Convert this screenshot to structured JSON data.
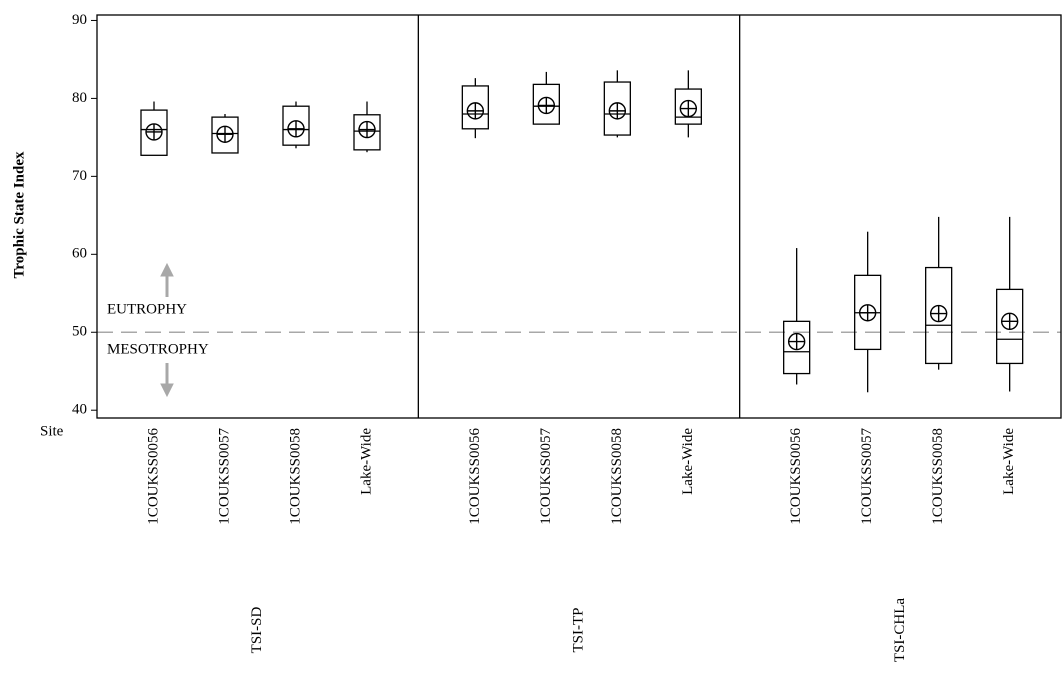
{
  "chart_data": {
    "type": "box",
    "y_label": "Trophic State Index",
    "x_label": "Site",
    "ylim": [
      39,
      90.7
    ],
    "yticks": [
      40,
      50,
      60,
      70,
      80,
      90
    ],
    "reference_line": {
      "value": 50,
      "upper_label": "EUTROPHY",
      "lower_label": "MESOTROPHY",
      "color": "#a8a8a8"
    },
    "panels": [
      {
        "name": "TSI-SD",
        "categories": [
          "1COUKSS0056",
          "1COUKSS0057",
          "1COUKSS0058",
          "Lake-Wide"
        ],
        "whisker_low": [
          72.7,
          73.0,
          73.6,
          73.1
        ],
        "q1": [
          72.7,
          73.0,
          74.0,
          73.4
        ],
        "median": [
          76.0,
          75.5,
          76.0,
          75.8
        ],
        "q3": [
          78.5,
          77.6,
          79.0,
          77.9
        ],
        "whisker_high": [
          79.6,
          78.0,
          79.6,
          79.6
        ],
        "mean": [
          75.7,
          75.4,
          76.1,
          76.0
        ]
      },
      {
        "name": "TSI-TP",
        "categories": [
          "1COUKSS0056",
          "1COUKSS0057",
          "1COUKSS0058",
          "Lake-Wide"
        ],
        "whisker_low": [
          74.9,
          76.7,
          75.0,
          75.0
        ],
        "q1": [
          76.1,
          76.7,
          75.3,
          76.7
        ],
        "median": [
          78.0,
          79.0,
          78.0,
          77.6
        ],
        "q3": [
          81.6,
          81.8,
          82.1,
          81.2
        ],
        "whisker_high": [
          82.6,
          83.4,
          83.6,
          83.6
        ],
        "mean": [
          78.4,
          79.1,
          78.4,
          78.7
        ]
      },
      {
        "name": "TSI-CHLa",
        "categories": [
          "1COUKSS0056",
          "1COUKSS0057",
          "1COUKSS0058",
          "Lake-Wide"
        ],
        "whisker_low": [
          43.3,
          42.3,
          45.2,
          42.4
        ],
        "q1": [
          44.7,
          47.8,
          46.0,
          46.0
        ],
        "median": [
          47.5,
          52.5,
          50.9,
          49.1
        ],
        "q3": [
          51.4,
          57.3,
          58.3,
          55.5
        ],
        "whisker_high": [
          60.8,
          62.9,
          64.8,
          64.8
        ],
        "mean": [
          48.8,
          52.5,
          52.4,
          51.4
        ]
      }
    ]
  }
}
